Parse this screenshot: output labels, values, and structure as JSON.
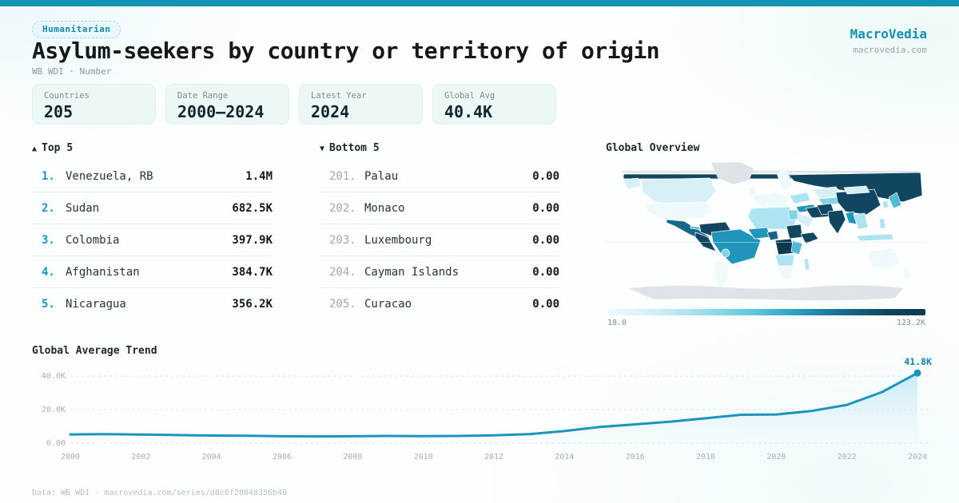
{
  "theme": {
    "accent": "#1492b4",
    "line": "#1b95bb",
    "dark_ink": "#15181b",
    "grid": "#dfe7ea"
  },
  "header": {
    "badge": "Humanitarian",
    "title": "Asylum-seekers by country or territory of origin",
    "subtitle": "WB WDI · Number",
    "brand": {
      "name": "MacroVedia",
      "domain": "macrovedia.com"
    }
  },
  "stats": [
    {
      "label": "Countries",
      "value": "205"
    },
    {
      "label": "Date Range",
      "value": "2000—2024"
    },
    {
      "label": "Latest Year",
      "value": "2024"
    },
    {
      "label": "Global Avg",
      "value": "40.4K"
    }
  ],
  "lists": {
    "top": {
      "icon": "▲",
      "label": "Top 5",
      "rows": [
        {
          "rank": "1.",
          "name": "Venezuela, RB",
          "value": "1.4M"
        },
        {
          "rank": "2.",
          "name": "Sudan",
          "value": "682.5K"
        },
        {
          "rank": "3.",
          "name": "Colombia",
          "value": "397.9K"
        },
        {
          "rank": "4.",
          "name": "Afghanistan",
          "value": "384.7K"
        },
        {
          "rank": "5.",
          "name": "Nicaragua",
          "value": "356.2K"
        }
      ]
    },
    "bottom": {
      "icon": "▼",
      "label": "Bottom 5",
      "rows": [
        {
          "rank": "201.",
          "name": "Palau",
          "value": "0.00"
        },
        {
          "rank": "202.",
          "name": "Monaco",
          "value": "0.00"
        },
        {
          "rank": "203.",
          "name": "Luxembourg",
          "value": "0.00"
        },
        {
          "rank": "204.",
          "name": "Cayman Islands",
          "value": "0.00"
        },
        {
          "rank": "205.",
          "name": "Curacao",
          "value": "0.00"
        }
      ]
    }
  },
  "map": {
    "title": "Global Overview",
    "scale_min_label": "18.0",
    "scale_max_label": "123.2K",
    "nodata_color": "#dde3e7",
    "scale_colors": [
      "#eef9fc",
      "#d7f0f8",
      "#aee4f1",
      "#7fd4e6",
      "#4fbcd6",
      "#2196ba",
      "#15688a",
      "#10465f",
      "#0d3850"
    ],
    "regions": {
      "arctic-gray": -1,
      "greenland": -1,
      "antarctica": -1,
      "arctic-band-w": 7,
      "arctic-band-e": 7,
      "russia": 7,
      "alaska": 1,
      "canada": 1,
      "usa": 0,
      "mexico-central-america": 6,
      "cuba-caribbean": 4,
      "colombia-venezuela": 7,
      "peru-ecuador": 7,
      "brazil": 5,
      "bolivia": 3,
      "argentina-chile": 0,
      "uk": 0,
      "europe-west": 0,
      "scandinavia": 0,
      "ukraine": 2,
      "turkey": 5,
      "kazakhstan": 1,
      "central-asia": 3,
      "iran-iraq": 7,
      "saudi-arabia": 1,
      "north-africa": 2,
      "egypt": 3,
      "west-africa": 5,
      "nigeria": 6,
      "sudan": 7,
      "horn-of-africa": 7,
      "drc": 8,
      "east-africa": 4,
      "angola-zambia": 2,
      "southern-africa": 0,
      "madagascar": 2,
      "pakistan-afghanistan": 7,
      "india": 7,
      "china": 7,
      "mongolia": 1,
      "myanmar-bangladesh": 5,
      "southeast-asia": 2,
      "indonesia": 2,
      "philippines": 2,
      "japan": 4,
      "korea": 2,
      "australia": 0,
      "new-zealand": 0
    }
  },
  "footer": {
    "text": "Data: WB WDI · macrovedia.com/series/d8c6f28048356b49"
  },
  "chart_data": [
    {
      "type": "line",
      "title": "Global Average Trend",
      "unit": "thousands",
      "x": [
        2000,
        2001,
        2002,
        2003,
        2004,
        2005,
        2006,
        2007,
        2008,
        2009,
        2010,
        2011,
        2012,
        2013,
        2014,
        2015,
        2016,
        2017,
        2018,
        2019,
        2020,
        2021,
        2022,
        2023,
        2024
      ],
      "series": [
        {
          "name": "Global Average",
          "values": [
            5.2,
            5.4,
            5.1,
            4.8,
            4.5,
            4.4,
            4.1,
            4.0,
            4.1,
            4.3,
            4.2,
            4.3,
            4.6,
            5.4,
            7.2,
            9.6,
            11.2,
            12.8,
            14.8,
            16.9,
            17.1,
            19.2,
            22.8,
            30.5,
            41.8
          ]
        }
      ],
      "ylim": [
        0,
        45
      ],
      "yticks": [
        {
          "label": "0.00",
          "value": 0
        },
        {
          "label": "20.0K",
          "value": 20
        },
        {
          "label": "40.0K",
          "value": 40
        }
      ],
      "xticks": [
        "2000",
        "2002",
        "2004",
        "2006",
        "2008",
        "2010",
        "2012",
        "2014",
        "2016",
        "2018",
        "2020",
        "2022",
        "2024"
      ],
      "endpoint_label": "41.8K",
      "grid": "dashed horizontal",
      "legend": "none"
    },
    {
      "type": "heatmap",
      "subtype": "world-choropleth",
      "title": "Global Overview",
      "scale": {
        "min_label": "18.0",
        "max_label": "123.2K"
      },
      "high_value_regions": [
        "Venezuela",
        "Sudan",
        "Colombia",
        "Afghanistan",
        "Russia",
        "China",
        "India",
        "Iran",
        "DR Congo",
        "Ethiopia",
        "Mexico"
      ],
      "low_value_regions": [
        "USA",
        "Western Europe",
        "Australia",
        "Southern Africa",
        "Argentina"
      ]
    }
  ]
}
